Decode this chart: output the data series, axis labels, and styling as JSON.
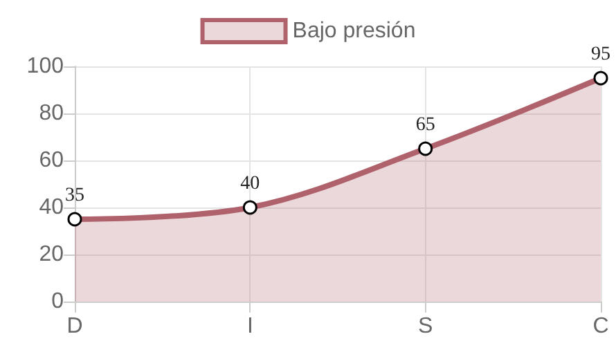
{
  "chart_data": {
    "type": "area",
    "categories": [
      "D",
      "I",
      "S",
      "C"
    ],
    "series": [
      {
        "name": "Bajo presión",
        "color": "#b0626c",
        "values": [
          35,
          40,
          65,
          95
        ]
      }
    ],
    "ylim": [
      0,
      100
    ],
    "yticks": [
      0,
      20,
      40,
      60,
      80,
      100
    ],
    "grid": true,
    "legend": "top",
    "marker": "circle",
    "data_labels": true
  }
}
